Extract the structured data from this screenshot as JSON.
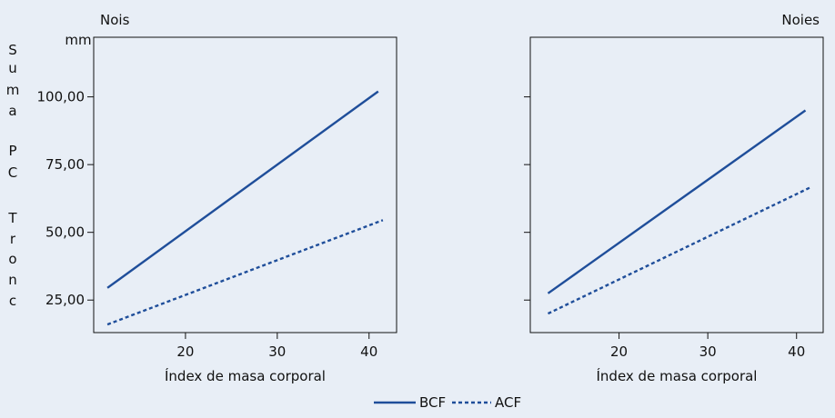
{
  "colors": {
    "background": "#e8eef6",
    "line": "#1f4e9a",
    "axis": "#111111"
  },
  "legend": {
    "position": "bottom-center",
    "entries": [
      "BCF",
      "ACF"
    ]
  },
  "ylabel_letters": [
    "S",
    "u",
    "m",
    "a",
    "P",
    "C",
    "T",
    "r",
    "o",
    "n",
    "c"
  ],
  "y_unit": "mm",
  "chart_data": [
    {
      "type": "line",
      "title": "Nois",
      "xlabel": "Índex de masa corporal",
      "ylabel": "Suma PC Tronc",
      "y_unit": "mm",
      "xlim": [
        10,
        43
      ],
      "ylim": [
        13,
        122
      ],
      "xticks": [
        20,
        30,
        40
      ],
      "xtick_labels": [
        "20",
        "30",
        "40"
      ],
      "yticks": [
        25,
        50,
        75,
        100
      ],
      "ytick_labels": [
        "25,00",
        "50,00",
        "75,00",
        "100,00"
      ],
      "grid": false,
      "series": [
        {
          "name": "BCF",
          "style": "solid",
          "x": [
            11.5,
            41
          ],
          "y": [
            29.5,
            102
          ]
        },
        {
          "name": "ACF",
          "style": "dotted",
          "x": [
            11.5,
            41.5
          ],
          "y": [
            16,
            54.5
          ]
        }
      ]
    },
    {
      "type": "line",
      "title": "Noies",
      "xlabel": "Índex de masa corporal",
      "ylabel": "",
      "xlim": [
        10,
        43
      ],
      "ylim": [
        13,
        122
      ],
      "xticks": [
        20,
        30,
        40
      ],
      "xtick_labels": [
        "20",
        "30",
        "40"
      ],
      "yticks": [
        25,
        50,
        75,
        100
      ],
      "ytick_labels": [],
      "grid": false,
      "series": [
        {
          "name": "BCF",
          "style": "solid",
          "x": [
            12,
            41
          ],
          "y": [
            27.5,
            95
          ]
        },
        {
          "name": "ACF",
          "style": "dotted",
          "x": [
            12,
            41.5
          ],
          "y": [
            20,
            66.5
          ]
        }
      ]
    }
  ]
}
